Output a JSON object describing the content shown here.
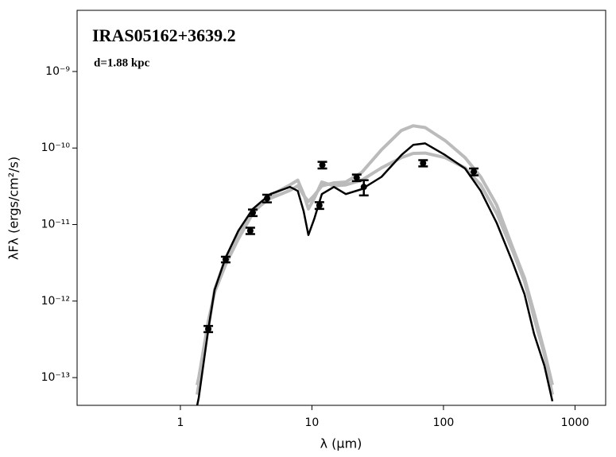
{
  "chart_data": {
    "type": "sed",
    "title": "IRAS05162+3639.2",
    "annotation": "d=1.88 kpc",
    "xlabel": "λ (μm)",
    "ylabel": "λFλ (ergs/cm²/s)",
    "xscale": "log",
    "yscale": "log",
    "xlim": [
      0.164,
      1710
    ],
    "ylim": [
      4.34e-14,
      6.3e-09
    ],
    "xticks": [
      1,
      10,
      100,
      1000
    ],
    "yticks": [
      {
        "value": 1e-13,
        "label": "10⁻¹³"
      },
      {
        "value": 1e-12,
        "label": "10⁻¹²"
      },
      {
        "value": 1e-11,
        "label": "10⁻¹¹"
      },
      {
        "value": 1e-10,
        "label": "10⁻¹⁰"
      },
      {
        "value": 1e-09,
        "label": "10⁻⁹"
      }
    ],
    "x": [
      1.34,
      1.38,
      1.63,
      1.82,
      2.21,
      2.76,
      3.55,
      4.82,
      6.82,
      7.8,
      8.65,
      9.4,
      10.4,
      11.9,
      14.7,
      18.1,
      23.9,
      33.8,
      47.9,
      58.9,
      72.6,
      103,
      146,
      192,
      254,
      336,
      413,
      489,
      585,
      673
    ],
    "series": [
      {
        "color": "#bbbbbb",
        "values": [
          6e-14,
          8e-14,
          4.5e-13,
          1.4e-12,
          3.6e-12,
          8e-12,
          1.5e-11,
          2.2e-11,
          2.8e-11,
          3.2e-11,
          2.4e-11,
          2e-11,
          2.4e-11,
          3.2e-11,
          3.5e-11,
          3.6e-11,
          4.8e-11,
          9.5e-11,
          1.7e-10,
          1.95e-10,
          1.85e-10,
          1.25e-10,
          7.5e-11,
          4.2e-11,
          1.8e-11,
          5e-12,
          2e-12,
          7e-13,
          2.2e-13,
          8e-14
        ]
      },
      {
        "color": "#bbbbbb",
        "values": [
          8e-14,
          1e-13,
          5.5e-13,
          1.3e-12,
          3e-12,
          6.5e-12,
          1.4e-11,
          2.4e-11,
          3.3e-11,
          3.8e-11,
          2.5e-11,
          1.6e-11,
          2.2e-11,
          3.6e-11,
          3.2e-11,
          3.3e-11,
          3.8e-11,
          5.5e-11,
          7.5e-11,
          8.5e-11,
          8.6e-11,
          7.5e-11,
          5.5e-11,
          3.3e-11,
          1.4e-11,
          4.5e-12,
          1.8e-12,
          6e-13,
          2e-13,
          6e-14
        ]
      },
      {
        "color": "#000000",
        "values": [
          4.3e-14,
          5.5e-14,
          4.3e-13,
          1.4e-12,
          3.7e-12,
          8.3e-12,
          1.6e-11,
          2.5e-11,
          3.1e-11,
          2.75e-11,
          1.5e-11,
          7.3e-12,
          1.18e-11,
          2.5e-11,
          3.1e-11,
          2.5e-11,
          2.9e-11,
          4.2e-11,
          8.1e-11,
          1.1e-10,
          1.15e-10,
          8.1e-11,
          5.4e-11,
          2.75e-11,
          1.05e-11,
          3.2e-12,
          1.23e-12,
          3.7e-13,
          1.43e-13,
          4.9e-14
        ]
      }
    ],
    "points": {
      "color": "#000000",
      "x": [
        1.63,
        2.21,
        3.4,
        3.55,
        4.56,
        11.4,
        12,
        21.9,
        24.8,
        70,
        170
      ],
      "values": [
        4.33e-13,
        3.5e-12,
        8.3e-12,
        1.43e-11,
        2.2e-11,
        1.78e-11,
        6e-11,
        4.1e-11,
        3.1e-11,
        6.35e-11,
        4.9e-11
      ],
      "errors": [
        4e-14,
        3e-13,
        8e-13,
        1.4e-12,
        2.5e-12,
        1.8e-12,
        6e-12,
        4e-12,
        7e-12,
        6e-12,
        5e-12
      ]
    }
  }
}
